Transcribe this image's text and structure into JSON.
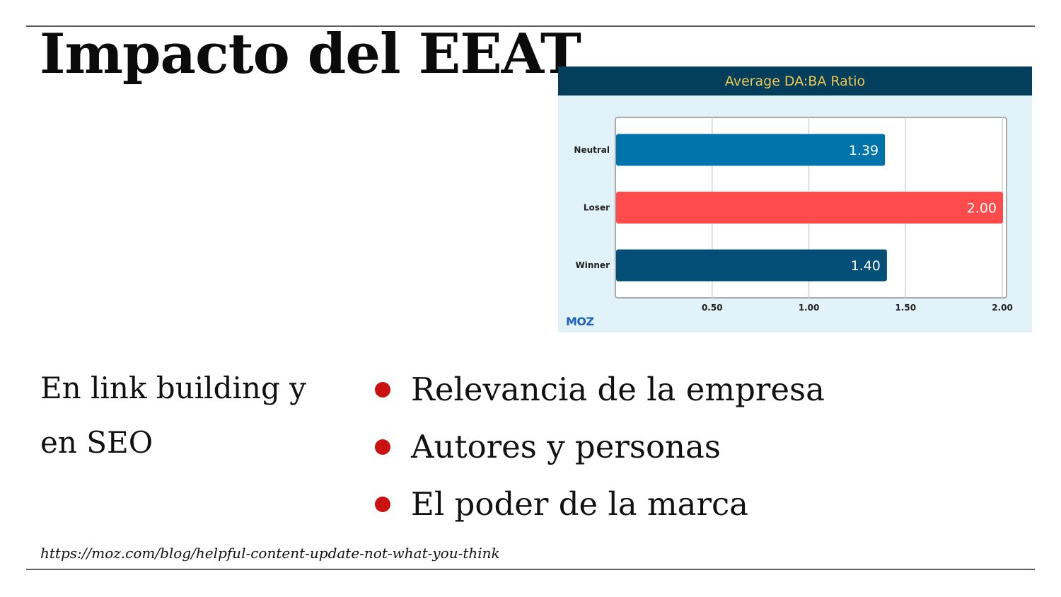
{
  "slide": {
    "title": "Impacto del EEAT",
    "subtitle": "En link building y en SEO",
    "bullets": [
      "Relevancia de la empresa",
      "Autores y personas",
      "El poder de la marca"
    ],
    "source": "https://moz.com/blog/helpful-content-update-not-what-you-think",
    "bullet_color": "#cc1111"
  },
  "chart_data": {
    "type": "bar",
    "orientation": "horizontal",
    "title": "Average DA:BA Ratio",
    "categories": [
      "Neutral",
      "Loser",
      "Winner"
    ],
    "values": [
      1.39,
      2.0,
      1.4
    ],
    "value_labels": [
      "1.39",
      "2.00",
      "1.40"
    ],
    "colors": [
      "#0074aa",
      "#ff4b4b",
      "#034f77"
    ],
    "xlim": [
      0,
      2.0
    ],
    "x_ticks": [
      0.5,
      1.0,
      1.5,
      2.0
    ],
    "x_tick_labels": [
      "0.50",
      "1.00",
      "1.50",
      "2.00"
    ],
    "grid": true,
    "xlabel": "",
    "ylabel": "",
    "logo": "MOZ",
    "colors_theme": {
      "header_bg": "#033e5c",
      "header_text": "#f2c94c",
      "panel_bg": "#e2f2f9",
      "logo": "#1e63b6"
    }
  }
}
